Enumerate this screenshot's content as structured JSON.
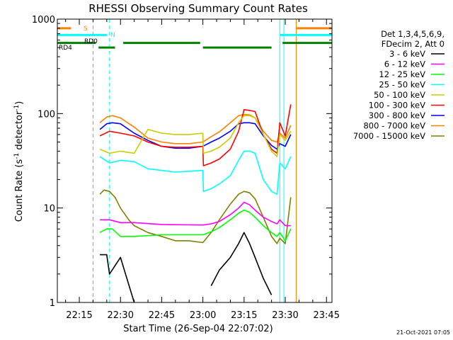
{
  "chart_data": {
    "type": "line",
    "title": "RHESSI Observing Summary Count Rates",
    "xlabel": "Start Time (26-Sep-04 22:07:02)",
    "ylabel": "Count Rate (s",
    "ylabel_sup1": "-1",
    "ylabel_mid": " detector",
    "ylabel_sup2": "-1",
    "ylabel_end": ")",
    "y_scale": "log",
    "ylim": [
      1,
      1000
    ],
    "xlim": [
      "22:07",
      "23:47"
    ],
    "xtick_labels": [
      "22:15",
      "22:30",
      "22:45",
      "23:00",
      "23:15",
      "23:30",
      "23:45"
    ],
    "xtick_minutes": [
      15,
      30,
      45,
      60,
      75,
      90,
      105
    ],
    "ytick_labels": [
      "1",
      "10",
      "100",
      "1000"
    ],
    "ytick_values": [
      1,
      10,
      100,
      1000
    ],
    "grid": false,
    "legend_position": "top-right",
    "legend_header": [
      "Det 1,3,4,5,6,9,",
      "FDecim 2, Att 0"
    ],
    "timestamp": "21-Oct-2021 07:05",
    "flag_labels": {
      "saa": "S",
      "night": "N",
      "rd0": "RD0",
      "rd4": "RD4"
    },
    "series": [
      {
        "name": "3 - 6 keV",
        "color": "#000000",
        "x": [
          22.5,
          25,
          26,
          30,
          35,
          52,
          60,
          63,
          66,
          70,
          73,
          75,
          77,
          79,
          82,
          85,
          87
        ],
        "y": [
          3.2,
          3.2,
          2,
          3,
          1,
          null,
          null,
          1.5,
          2.2,
          3,
          4.2,
          5.5,
          4.2,
          3,
          1.8,
          1.2,
          null
        ]
      },
      {
        "name": "6 - 12 keV",
        "color": "#ff00ff",
        "x": [
          22.5,
          26,
          30,
          35,
          45,
          60,
          63,
          66,
          70,
          73,
          75,
          77,
          79,
          82,
          85,
          87,
          88,
          90,
          92
        ],
        "y": [
          7.5,
          7.5,
          7,
          7,
          6.7,
          6.6,
          6.8,
          7.2,
          8.5,
          10,
          11.5,
          10.8,
          9.5,
          8,
          7.2,
          6.8,
          7.5,
          6.5,
          6.5
        ]
      },
      {
        "name": "12 - 25 keV",
        "color": "#00ff00",
        "x": [
          22.5,
          25,
          27,
          30,
          35,
          45,
          60,
          63,
          66,
          70,
          73,
          75,
          77,
          79,
          82,
          85,
          87,
          88,
          90,
          92
        ],
        "y": [
          5.5,
          6,
          6,
          5,
          5,
          5.2,
          5.2,
          5.6,
          6.2,
          7.5,
          8.8,
          9.5,
          9,
          8,
          6.5,
          5.5,
          5,
          5.5,
          4.5,
          6
        ]
      },
      {
        "name": "25 - 50 keV",
        "color": "#00ffff",
        "x": [
          22.5,
          26,
          30,
          35,
          40,
          45,
          50,
          55,
          60,
          60.2,
          63,
          66,
          70,
          73,
          75,
          77,
          79,
          82,
          85,
          87,
          88,
          90,
          92
        ],
        "y": [
          35,
          30,
          32,
          31,
          26,
          25,
          24,
          24.5,
          25,
          15,
          16,
          18,
          22,
          32,
          40,
          40,
          38,
          20,
          15,
          14,
          30,
          26,
          35
        ]
      },
      {
        "name": "50 - 100 keV",
        "color": "#cccc00",
        "x": [
          22.5,
          26,
          30,
          35,
          40,
          45,
          50,
          55,
          60,
          60.2,
          63,
          66,
          70,
          73,
          75,
          77,
          79,
          82,
          85,
          87,
          88,
          90,
          92
        ],
        "y": [
          42,
          38,
          40,
          38,
          68,
          62,
          60,
          60,
          62,
          38,
          40,
          44,
          55,
          80,
          95,
          95,
          90,
          60,
          40,
          35,
          60,
          52,
          65
        ]
      },
      {
        "name": "100 - 300 keV",
        "color": "#ff0000",
        "x": [
          22.5,
          26,
          30,
          35,
          40,
          45,
          50,
          55,
          60,
          60.2,
          63,
          66,
          70,
          73,
          75,
          77,
          79,
          82,
          85,
          87,
          88,
          90,
          92
        ],
        "y": [
          58,
          65,
          62,
          58,
          50,
          45,
          44,
          44,
          45,
          28,
          30,
          33,
          42,
          65,
          110,
          108,
          105,
          60,
          42,
          38,
          80,
          58,
          125
        ]
      },
      {
        "name": "300 - 800 keV",
        "color": "#0000ff",
        "x": [
          22.5,
          25,
          27,
          30,
          35,
          40,
          45,
          50,
          55,
          60,
          63,
          66,
          70,
          73,
          75,
          77,
          79,
          82,
          85,
          87,
          88,
          90,
          92
        ],
        "y": [
          68,
          78,
          80,
          78,
          62,
          52,
          45,
          43,
          43,
          45,
          50,
          55,
          65,
          78,
          80,
          80,
          78,
          58,
          46,
          42,
          48,
          45,
          60
        ]
      },
      {
        "name": "800 - 7000 keV",
        "color": "#ff8000",
        "x": [
          22.5,
          25,
          27,
          30,
          35,
          40,
          45,
          50,
          55,
          60,
          63,
          66,
          70,
          73,
          75,
          77,
          79,
          82,
          85,
          87,
          88,
          90,
          92
        ],
        "y": [
          80,
          92,
          95,
          90,
          72,
          55,
          50,
          48,
          48,
          50,
          57,
          64,
          80,
          95,
          98,
          97,
          90,
          65,
          52,
          50,
          62,
          55,
          75
        ]
      },
      {
        "name": "7000 - 15000 keV",
        "color": "#808000",
        "x": [
          22.5,
          24,
          26,
          28,
          30,
          33,
          35,
          40,
          45,
          50,
          55,
          60,
          63,
          66,
          70,
          73,
          75,
          77,
          79,
          82,
          85,
          87,
          88,
          90,
          92
        ],
        "y": [
          14,
          15.5,
          15,
          13,
          10,
          7.5,
          6.5,
          5.5,
          5,
          4.5,
          4.5,
          4.3,
          5.5,
          7.5,
          11,
          14,
          15,
          14.5,
          12.5,
          8,
          5,
          4.2,
          4.8,
          4.2,
          13
        ]
      }
    ],
    "overlay_lines": [
      {
        "name": "saa-bar",
        "color": "#ff8000",
        "segments": [
          [
            7,
            12
          ],
          [
            94,
            107
          ]
        ],
        "level": 800
      },
      {
        "name": "night-bar",
        "color": "#00ffff",
        "segments": [
          [
            7,
            25
          ],
          [
            88,
            107
          ]
        ],
        "level": 680
      },
      {
        "name": "rd0-bar",
        "color": "#008000",
        "segments": [
          [
            7,
            21
          ],
          [
            31,
            59
          ],
          [
            89,
            107
          ]
        ],
        "level": 560
      },
      {
        "name": "rd4-bar",
        "color": "#008000",
        "segments": [
          [
            22,
            28
          ],
          [
            60,
            85
          ]
        ],
        "level": 500
      }
    ],
    "vertical_markers": [
      {
        "name": "saa-start",
        "color": "#ff8000",
        "minute": 20,
        "dashed": true
      },
      {
        "name": "night-start",
        "color": "#00ffff",
        "minute": 26,
        "dashed": true
      },
      {
        "name": "night-end",
        "color": "#00ffff",
        "minute": 88,
        "dashed": false
      },
      {
        "name": "night-end-2",
        "color": "#00ffff",
        "minute": 89.5,
        "dashed": false
      },
      {
        "name": "saa-end",
        "color": "#ff8000",
        "minute": 94,
        "dashed": false
      },
      {
        "name": "night-start-2",
        "color": "#00ffff",
        "minute": 107,
        "dashed": true
      }
    ]
  }
}
